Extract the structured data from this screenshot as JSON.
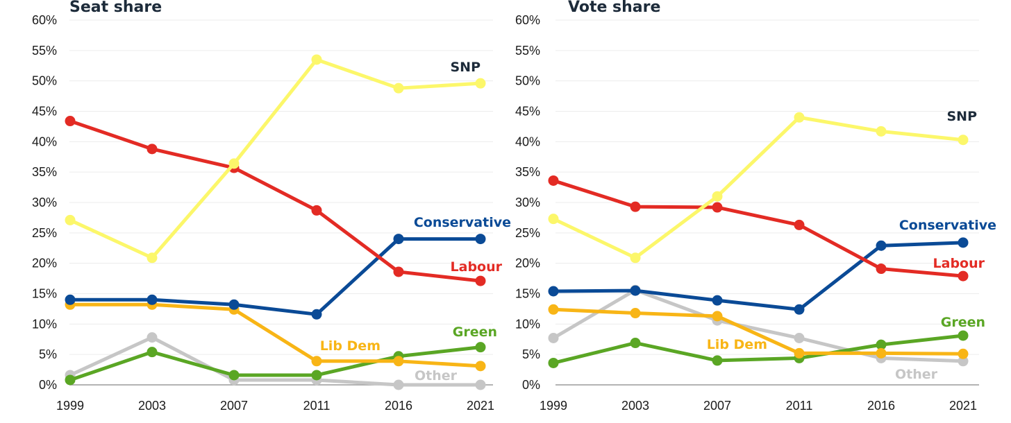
{
  "chart_data": [
    {
      "type": "line",
      "title": "Seat share",
      "x": [
        "1999",
        "2003",
        "2007",
        "2011",
        "2016",
        "2021"
      ],
      "y_ticks": [
        "0%",
        "5%",
        "10%",
        "15%",
        "20%",
        "25%",
        "30%",
        "35%",
        "40%",
        "45%",
        "50%",
        "55%",
        "60%"
      ],
      "ylim": [
        0,
        60
      ],
      "grid": true,
      "series": [
        {
          "name": "SNP",
          "color": "#fcf76a",
          "label_color": "#1d2b3a",
          "values": [
            27.1,
            20.9,
            36.4,
            53.5,
            48.8,
            49.6
          ]
        },
        {
          "name": "Labour",
          "color": "#e32b24",
          "label_color": "#e32b24",
          "values": [
            43.4,
            38.8,
            35.7,
            28.7,
            18.6,
            17.1
          ]
        },
        {
          "name": "Conservative",
          "color": "#0a4a96",
          "label_color": "#0a4a96",
          "values": [
            14.0,
            14.0,
            13.2,
            11.6,
            24.0,
            24.0
          ]
        },
        {
          "name": "Lib Dem",
          "color": "#f8b516",
          "label_color": "#f8b516",
          "values": [
            13.2,
            13.2,
            12.4,
            3.9,
            3.9,
            3.1
          ]
        },
        {
          "name": "Green",
          "color": "#5aa624",
          "label_color": "#5aa624",
          "values": [
            0.8,
            5.4,
            1.6,
            1.6,
            4.7,
            6.2
          ]
        },
        {
          "name": "Other",
          "color": "#c6c6c6",
          "label_color": "#c6c6c6",
          "values": [
            1.6,
            7.8,
            0.8,
            0.8,
            0.0,
            0.0
          ]
        }
      ]
    },
    {
      "type": "line",
      "title": "Vote share",
      "x": [
        "1999",
        "2003",
        "2007",
        "2011",
        "2016",
        "2021"
      ],
      "y_ticks": [
        "0%",
        "5%",
        "10%",
        "15%",
        "20%",
        "25%",
        "30%",
        "35%",
        "40%",
        "45%",
        "50%",
        "55%",
        "60%"
      ],
      "ylim": [
        0,
        60
      ],
      "grid": true,
      "series": [
        {
          "name": "SNP",
          "color": "#fcf76a",
          "label_color": "#1d2b3a",
          "values": [
            27.3,
            20.9,
            31.0,
            44.0,
            41.7,
            40.3
          ]
        },
        {
          "name": "Labour",
          "color": "#e32b24",
          "label_color": "#e32b24",
          "values": [
            33.6,
            29.3,
            29.2,
            26.3,
            19.1,
            17.9
          ]
        },
        {
          "name": "Conservative",
          "color": "#0a4a96",
          "label_color": "#0a4a96",
          "values": [
            15.4,
            15.5,
            13.9,
            12.4,
            22.9,
            23.4
          ]
        },
        {
          "name": "Lib Dem",
          "color": "#f8b516",
          "label_color": "#f8b516",
          "values": [
            12.4,
            11.8,
            11.3,
            5.2,
            5.2,
            5.1
          ]
        },
        {
          "name": "Green",
          "color": "#5aa624",
          "label_color": "#5aa624",
          "values": [
            3.6,
            6.9,
            4.0,
            4.4,
            6.6,
            8.1
          ]
        },
        {
          "name": "Other",
          "color": "#c6c6c6",
          "label_color": "#c6c6c6",
          "values": [
            7.7,
            15.6,
            10.6,
            7.7,
            4.4,
            3.9
          ]
        }
      ]
    }
  ]
}
